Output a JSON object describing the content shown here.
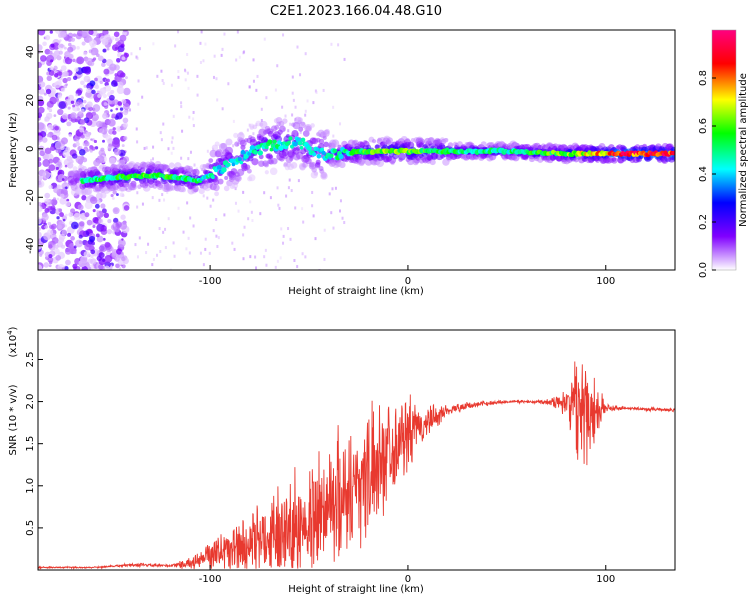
{
  "figure": {
    "title": "C2E1.2023.166.04.48.G10"
  },
  "chart_data": [
    {
      "type": "heatmap",
      "xlabel": "Height of straight line (km)",
      "ylabel": "Frequency (Hz)",
      "xlim": [
        -187,
        135
      ],
      "ylim": [
        -50,
        49
      ],
      "xticks": [
        -100,
        0,
        100
      ],
      "yticks": [
        -40,
        -20,
        0,
        20,
        40
      ],
      "colorbar": {
        "label": "Normalized spectral amplitude",
        "range": [
          0.0,
          1.0
        ],
        "ticks": [
          "0.0",
          "0.2",
          "0.4",
          "0.6",
          "0.8"
        ],
        "colors": [
          "#ffffff",
          "#8000ff",
          "#0000ff",
          "#00ffff",
          "#00ff00",
          "#ffff00",
          "#ff0000",
          "#ff0080"
        ]
      },
      "ridge": [
        {
          "x": -165,
          "y": -13,
          "amp": 0.5
        },
        {
          "x": -150,
          "y": -12,
          "amp": 0.55
        },
        {
          "x": -130,
          "y": -11,
          "amp": 0.6
        },
        {
          "x": -115,
          "y": -12,
          "amp": 0.55
        },
        {
          "x": -105,
          "y": -13,
          "amp": 0.5
        },
        {
          "x": -95,
          "y": -8,
          "amp": 0.45
        },
        {
          "x": -85,
          "y": -4,
          "amp": 0.45
        },
        {
          "x": -75,
          "y": 0,
          "amp": 0.5
        },
        {
          "x": -65,
          "y": 2,
          "amp": 0.5
        },
        {
          "x": -55,
          "y": 3,
          "amp": 0.45
        },
        {
          "x": -45,
          "y": -2,
          "amp": 0.45
        },
        {
          "x": -35,
          "y": -2,
          "amp": 0.5
        },
        {
          "x": -20,
          "y": -1,
          "amp": 0.6
        },
        {
          "x": -5,
          "y": -1,
          "amp": 0.65
        },
        {
          "x": 20,
          "y": -1,
          "amp": 0.55
        },
        {
          "x": 50,
          "y": -1,
          "amp": 0.5
        },
        {
          "x": 80,
          "y": -2,
          "amp": 0.65
        },
        {
          "x": 110,
          "y": -2,
          "amp": 0.9
        },
        {
          "x": 135,
          "y": -2,
          "amp": 0.9
        }
      ]
    },
    {
      "type": "line",
      "xlabel": "Height of straight line (km)",
      "ylabel": "SNR (10 * v/v)",
      "yscale_label": "(x10",
      "yscale_exponent": "4",
      "yscale_suffix": ")",
      "xlim": [
        -187,
        135
      ],
      "ylim": [
        0,
        2.85
      ],
      "xticks": [
        -100,
        0,
        100
      ],
      "yticks": [
        "0.5",
        "1.0",
        "1.5",
        "2.0",
        "2.5"
      ],
      "series": [
        {
          "color": "#e8392f",
          "x": [
            -187,
            -160,
            -140,
            -120,
            -105,
            -100,
            -90,
            -80,
            -70,
            -60,
            -50,
            -40,
            -30,
            -20,
            -10,
            0,
            10,
            20,
            30,
            40,
            50,
            60,
            70,
            80,
            85,
            90,
            95,
            100,
            110,
            120,
            135
          ],
          "base": [
            0.03,
            0.03,
            0.06,
            0.05,
            0.1,
            0.2,
            0.25,
            0.3,
            0.4,
            0.5,
            0.6,
            0.8,
            0.95,
            1.15,
            1.45,
            1.6,
            1.75,
            1.9,
            1.95,
            1.98,
            2.0,
            2.0,
            2.0,
            2.0,
            1.97,
            1.95,
            1.93,
            1.92,
            1.92,
            1.91,
            1.9
          ],
          "amp": [
            0.01,
            0.01,
            0.02,
            0.02,
            0.1,
            0.2,
            0.3,
            0.4,
            0.5,
            0.6,
            0.7,
            0.8,
            0.8,
            0.8,
            0.6,
            0.45,
            0.2,
            0.08,
            0.04,
            0.03,
            0.02,
            0.02,
            0.03,
            0.15,
            0.6,
            0.8,
            0.4,
            0.05,
            0.02,
            0.02,
            0.02
          ]
        }
      ]
    }
  ]
}
